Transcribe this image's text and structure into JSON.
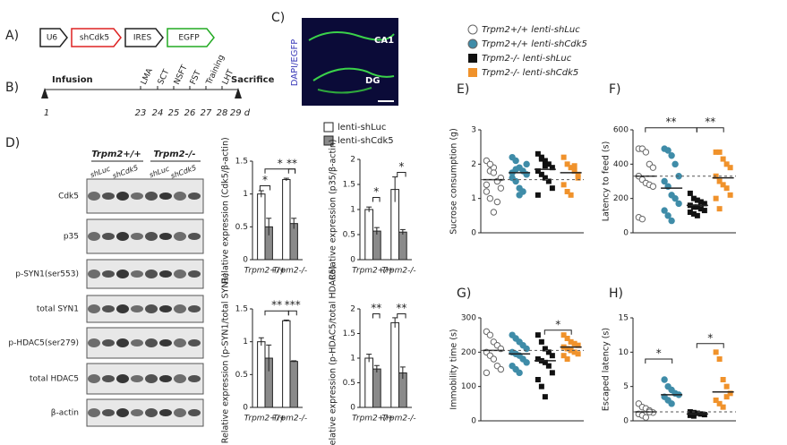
{
  "panel_labels": [
    "A)",
    "B)",
    "C)",
    "D)",
    "E)",
    "F)",
    "G)",
    "H)"
  ],
  "construct": [
    "U6",
    "shCdk5",
    "IRES",
    "EGFP"
  ],
  "timeline": {
    "start": "Infusion",
    "end": "Sacrifice",
    "events": [
      "LMA",
      "SCT",
      "NSFT",
      "FST",
      "Training",
      "LHT"
    ],
    "days": [
      "1",
      "23",
      "24",
      "25",
      "26",
      "27",
      "28",
      "29 d"
    ]
  },
  "image": {
    "stain": "DAPI/EGFP",
    "regions": [
      "CA1",
      "DG"
    ]
  },
  "blot": {
    "header": [
      "Trpm2+/+",
      "Trpm2-/-"
    ],
    "lanes": [
      "shLuc",
      "shCdk5",
      "shLuc",
      "shCdk5"
    ],
    "rows": [
      "Cdk5",
      "p35",
      "p-SYN1(ser553)",
      "total SYN1",
      "p-HDAC5(ser279)",
      "total HDAC5",
      "β-actin"
    ]
  },
  "scatter_legend": [
    {
      "name": "Trpm2+/+ lenti-shLuc",
      "color": "#ffffff",
      "marker": "circle"
    },
    {
      "name": "Trpm2+/+ lenti-shCdk5",
      "color": "#3f8ca8",
      "marker": "circle"
    },
    {
      "name": "Trpm2-/- lenti-shLuc",
      "color": "#111111",
      "marker": "square"
    },
    {
      "name": "Trpm2-/- lenti-shCdk5",
      "color": "#f0922b",
      "marker": "square"
    }
  ],
  "chart_data": [
    {
      "type": "bar",
      "y_label": "Relative expression (Cdk5/β-actin)",
      "categories": [
        "Trpm2+/+",
        "Trpm2-/-"
      ],
      "ylim": [
        0,
        1.5
      ],
      "yticks": [
        0,
        0.5,
        1,
        1.5
      ],
      "series": [
        {
          "name": "lenti-shLuc",
          "color": "#ffffff",
          "values": [
            1.0,
            1.22
          ],
          "errors": [
            0.05,
            0.02
          ]
        },
        {
          "name": "lenti-shCdk5",
          "color": "#8a8a8a",
          "values": [
            0.5,
            0.55
          ],
          "errors": [
            0.13,
            0.08
          ]
        }
      ],
      "annotations": [
        "*",
        "*",
        "**"
      ]
    },
    {
      "type": "bar",
      "y_label": "Relative expression (p35/β-actin)",
      "categories": [
        "Trpm2+/+",
        "Trpm2-/-"
      ],
      "ylim": [
        0,
        2
      ],
      "yticks": [
        0,
        0.5,
        1,
        1.5,
        2
      ],
      "series": [
        {
          "color": "#ffffff",
          "values": [
            1.0,
            1.4
          ],
          "errors": [
            0.05,
            0.25
          ]
        },
        {
          "color": "#8a8a8a",
          "values": [
            0.57,
            0.55
          ],
          "errors": [
            0.07,
            0.05
          ]
        }
      ],
      "annotations": [
        "*",
        "*"
      ]
    },
    {
      "type": "bar",
      "y_label": "Relative expression (p-SYN1/total SYN1)",
      "categories": [
        "Trpm2+/+",
        "Trpm2-/-"
      ],
      "ylim": [
        0,
        1.5
      ],
      "yticks": [
        0,
        0.5,
        1,
        1.5
      ],
      "series": [
        {
          "color": "#ffffff",
          "values": [
            1.0,
            1.32
          ],
          "errors": [
            0.06,
            0.01
          ]
        },
        {
          "color": "#8a8a8a",
          "values": [
            0.75,
            0.7
          ],
          "errors": [
            0.2,
            0.01
          ]
        }
      ],
      "annotations": [
        "**",
        "***"
      ]
    },
    {
      "type": "bar",
      "y_label": "Relative expression (p-HDAC5/total HDAC5)",
      "categories": [
        "Trpm2+/+",
        "Trpm2-/-"
      ],
      "ylim": [
        0,
        2
      ],
      "yticks": [
        0,
        0.5,
        1,
        1.5,
        2
      ],
      "series": [
        {
          "color": "#ffffff",
          "values": [
            1.0,
            1.72
          ],
          "errors": [
            0.08,
            0.1
          ]
        },
        {
          "color": "#8a8a8a",
          "values": [
            0.78,
            0.7
          ],
          "errors": [
            0.07,
            0.12
          ]
        }
      ],
      "annotations": [
        "**",
        "**"
      ]
    },
    {
      "type": "strip",
      "y_label": "Sucrose consumption (g)",
      "ylim": [
        0,
        3
      ],
      "yticks": [
        0,
        1,
        2,
        3
      ],
      "series": [
        {
          "values": [
            2.1,
            1.8,
            1.9,
            1.5,
            1.3,
            1.2,
            1.0,
            0.6,
            0.9,
            1.6,
            1.4,
            2.0,
            1.75
          ],
          "mean": 1.55
        },
        {
          "values": [
            2.2,
            2.1,
            1.9,
            1.8,
            1.7,
            1.6,
            1.5,
            1.3,
            1.2,
            2.0,
            1.75,
            1.85,
            1.1
          ],
          "mean": 1.75
        },
        {
          "values": [
            2.3,
            2.2,
            2.1,
            2.0,
            1.9,
            1.8,
            1.7,
            1.6,
            1.5,
            1.3,
            1.1,
            2.15,
            1.95
          ],
          "mean": 1.85
        },
        {
          "values": [
            2.2,
            2.0,
            1.9,
            1.8,
            1.6,
            1.4,
            1.2,
            1.1,
            1.95,
            1.7
          ],
          "mean": 1.75
        }
      ],
      "annotations": []
    },
    {
      "type": "strip",
      "y_label": "Latency to feed (s)",
      "ylim": [
        0,
        600
      ],
      "yticks": [
        0,
        200,
        400,
        600
      ],
      "series": [
        {
          "values": [
            490,
            490,
            470,
            400,
            380,
            330,
            310,
            290,
            280,
            270,
            90,
            80
          ],
          "mean": 330
        },
        {
          "values": [
            490,
            480,
            450,
            400,
            330,
            300,
            270,
            220,
            200,
            170,
            130,
            100,
            70
          ],
          "mean": 260
        },
        {
          "values": [
            230,
            200,
            190,
            180,
            170,
            160,
            150,
            150,
            140,
            130,
            120,
            110,
            100
          ],
          "mean": 160
        },
        {
          "values": [
            470,
            470,
            430,
            400,
            380,
            330,
            300,
            280,
            260,
            220,
            200,
            140
          ],
          "mean": 320
        }
      ],
      "annotations": [
        "**",
        "**"
      ]
    },
    {
      "type": "strip",
      "y_label": "Immobility time (s)",
      "ylim": [
        0,
        300
      ],
      "yticks": [
        0,
        100,
        200,
        300
      ],
      "series": [
        {
          "values": [
            260,
            250,
            230,
            220,
            210,
            200,
            190,
            180,
            160,
            150,
            140
          ],
          "mean": 205
        },
        {
          "values": [
            250,
            240,
            230,
            220,
            210,
            200,
            195,
            190,
            180,
            170,
            160,
            150,
            140
          ],
          "mean": 195
        },
        {
          "values": [
            250,
            230,
            210,
            200,
            190,
            180,
            175,
            170,
            160,
            140,
            120,
            100,
            70
          ],
          "mean": 175
        },
        {
          "values": [
            250,
            240,
            230,
            225,
            220,
            215,
            210,
            205,
            200,
            195,
            190,
            180
          ],
          "mean": 215
        }
      ],
      "annotations": [
        "*"
      ]
    },
    {
      "type": "strip",
      "y_label": "Escaped latency (s)",
      "ylim": [
        0,
        15
      ],
      "yticks": [
        0,
        5,
        10,
        15
      ],
      "series": [
        {
          "values": [
            2.5,
            2,
            1.8,
            1.5,
            1.2,
            1.0,
            0.8,
            0.5,
            1.3
          ],
          "mean": 1.3
        },
        {
          "values": [
            6,
            5,
            4.5,
            4,
            3.8,
            3.5,
            3,
            2.5
          ],
          "mean": 3.8
        },
        {
          "values": [
            1.3,
            1.2,
            1.1,
            1.0,
            0.9,
            0.8,
            0.7
          ],
          "mean": 1.0
        },
        {
          "values": [
            10,
            9,
            6,
            5,
            4,
            3,
            2.5,
            2,
            3.5
          ],
          "mean": 4.2
        }
      ],
      "annotations": [
        "*",
        "*"
      ]
    }
  ]
}
